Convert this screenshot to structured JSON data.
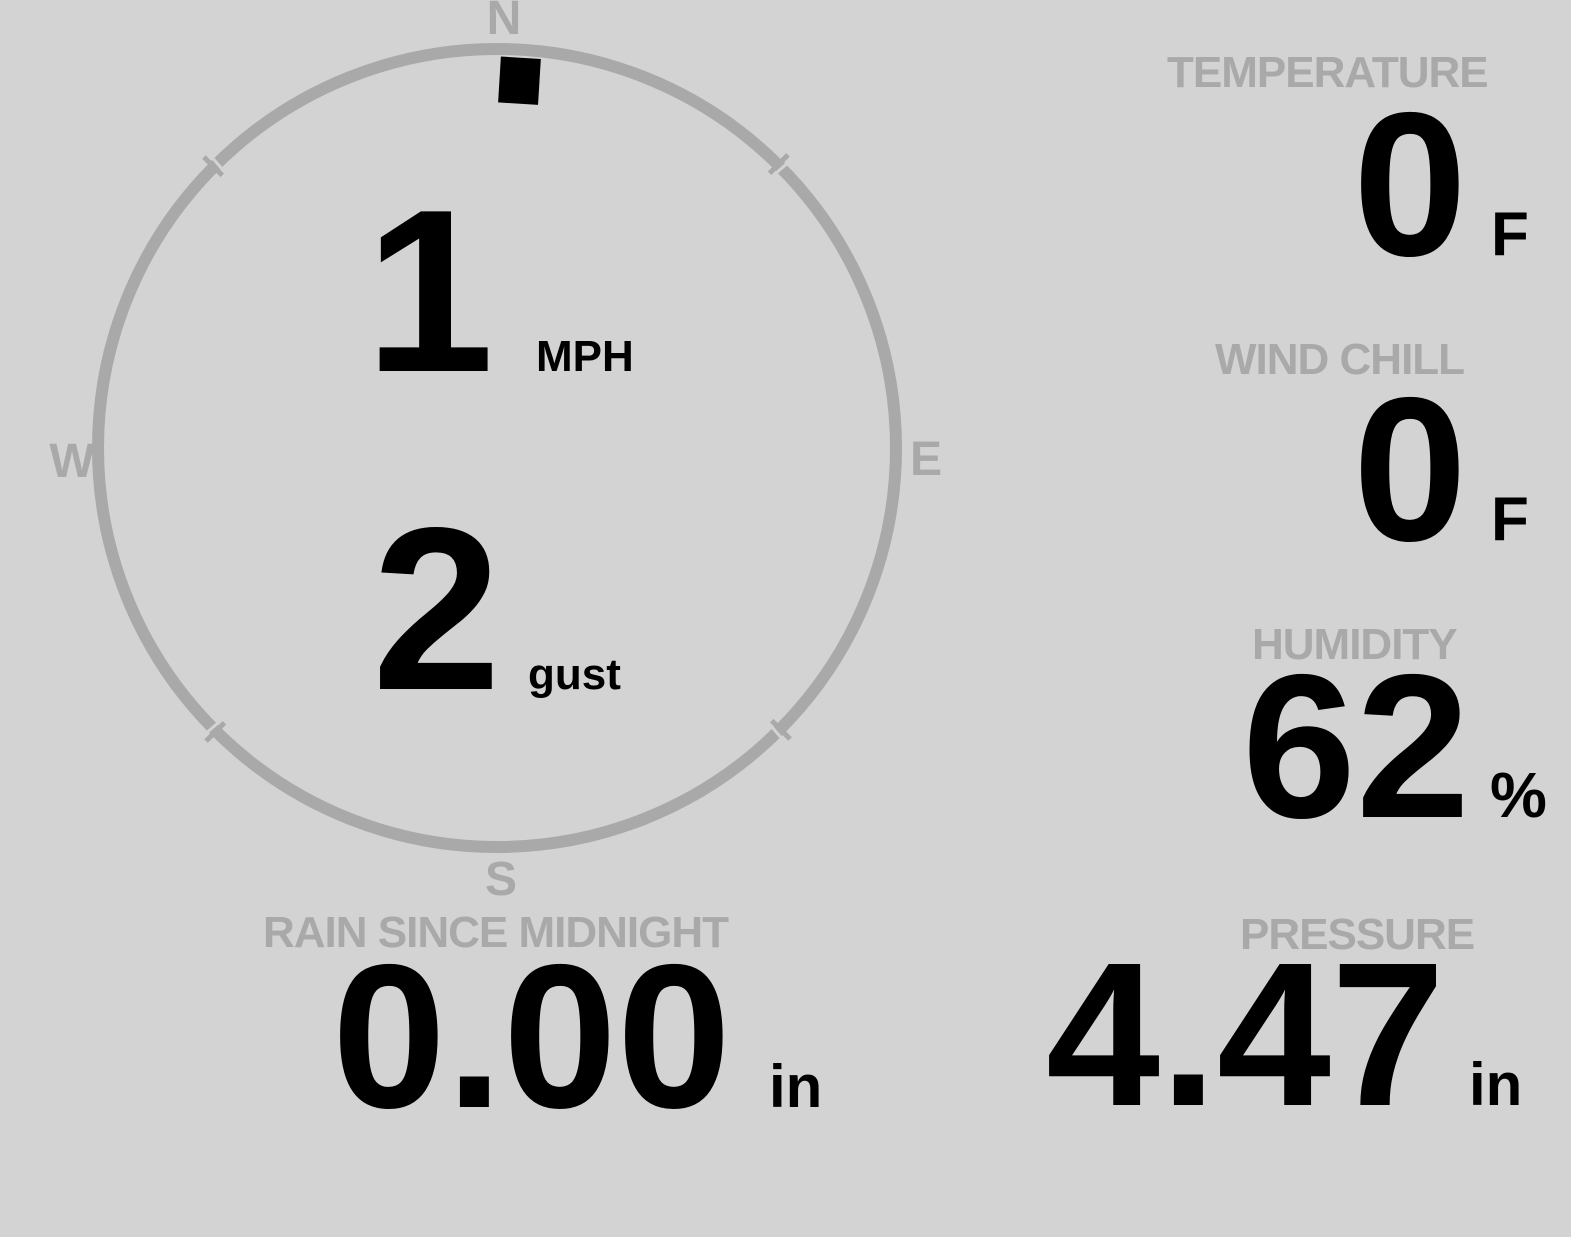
{
  "colors": {
    "background": "#d3d3d3",
    "muted_gray": "#a9a9a9",
    "value_black": "#000000"
  },
  "wind": {
    "compass": {
      "north": "N",
      "east": "E",
      "south": "S",
      "west": "W"
    },
    "direction_cardinal": "N",
    "speed": {
      "value": "1",
      "unit": "MPH"
    },
    "gust": {
      "value": "2",
      "unit": "gust"
    }
  },
  "metrics": {
    "temperature": {
      "label": "TEMPERATURE",
      "value": "0",
      "unit": "F"
    },
    "wind_chill": {
      "label": "WIND CHILL",
      "value": "0",
      "unit": "F"
    },
    "humidity": {
      "label": "HUMIDITY",
      "value": "62",
      "unit": "%"
    },
    "pressure": {
      "label": "PRESSURE",
      "value": "4.47",
      "unit": "in"
    },
    "rain_since_midnight": {
      "label": "RAIN SINCE MIDNIGHT",
      "value": "0.00",
      "unit": "in"
    }
  }
}
